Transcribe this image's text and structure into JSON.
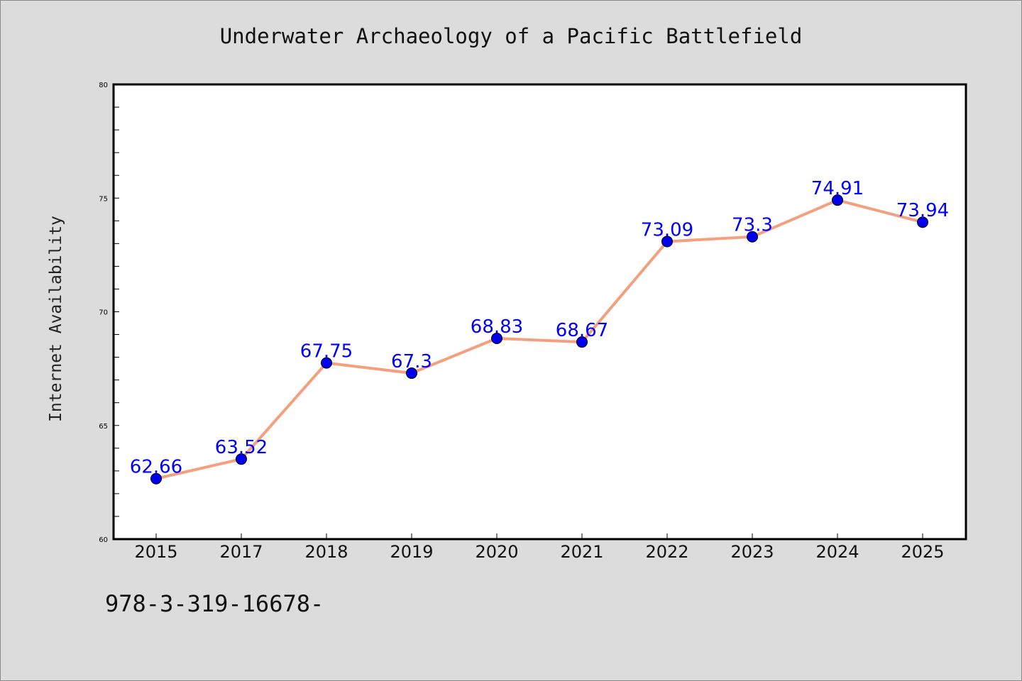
{
  "chart_data": {
    "type": "line",
    "title": "Underwater Archaeology of a Pacific Battlefield",
    "xlabel": "",
    "ylabel": "Internet Availability",
    "categories": [
      "2015",
      "2017",
      "2018",
      "2019",
      "2020",
      "2021",
      "2022",
      "2023",
      "2024",
      "2025"
    ],
    "series": [
      {
        "values": [
          62.66,
          63.52,
          67.75,
          67.3,
          68.83,
          68.67,
          73.09,
          73.3,
          74.91,
          73.94
        ],
        "data_labels": [
          "62.66",
          "63.52",
          "67.75",
          "67.3",
          "68.83",
          "68.67",
          "73.09",
          "73.3",
          "74.91",
          "73.94"
        ],
        "line_color": "#f4a07f",
        "marker_color": "#0000ee"
      }
    ],
    "ylim": [
      60,
      80
    ],
    "yticks": [
      "60",
      "65",
      "70",
      "75",
      "80"
    ],
    "label_color": "#0000ff",
    "grid": false,
    "legend": "none"
  },
  "footer": {
    "isbn": "978-3-319-16678-"
  }
}
